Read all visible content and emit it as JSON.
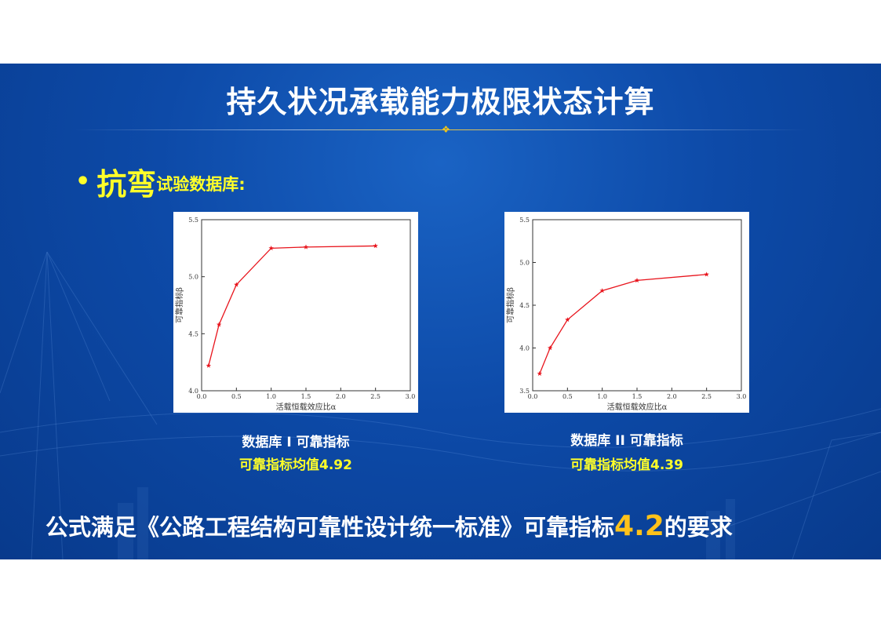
{
  "slide": {
    "title": "持久状况承载能力极限状态计算",
    "bullet_marker": "•",
    "bullet_emphasis": "抗弯",
    "bullet_rest": "试验数据库:",
    "bottom_prefix": "公式满足《公路工程结构可靠性设计统一标准》可靠指标",
    "bottom_highlight": "4.2",
    "bottom_suffix": "的要求",
    "colors": {
      "background": "#0d4aa8",
      "accent_yellow": "#ffff29",
      "highlight_orange": "#ffc21a",
      "series": "#e8141c"
    }
  },
  "charts": [
    {
      "caption": "数据库 I 可靠指标",
      "subcaption": "可靠指标均值4.92"
    },
    {
      "caption": "数据库 II 可靠指标",
      "subcaption": "可靠指标均值4.39"
    }
  ],
  "chart_data": [
    {
      "type": "line",
      "xlabel": "活载恒载效应比α",
      "ylabel": "可靠指标β",
      "xlim": [
        0,
        3.0
      ],
      "ylim": [
        4.0,
        5.5
      ],
      "xticks": [
        "0.0",
        "0.5",
        "1.0",
        "1.5",
        "2.0",
        "2.5",
        "3.0"
      ],
      "yticks": [
        "4.0",
        "4.5",
        "5.0",
        "5.5"
      ],
      "marker": "star",
      "grid": false,
      "x": [
        0.1,
        0.25,
        0.5,
        1.0,
        1.5,
        2.5
      ],
      "y": [
        4.22,
        4.58,
        4.93,
        5.25,
        5.26,
        5.27
      ]
    },
    {
      "type": "line",
      "xlabel": "活载恒载效应比α",
      "ylabel": "可靠指标β",
      "xlim": [
        0,
        3.0
      ],
      "ylim": [
        3.5,
        5.5
      ],
      "xticks": [
        "0.0",
        "0.5",
        "1.0",
        "1.5",
        "2.0",
        "2.5",
        "3.0"
      ],
      "yticks": [
        "3.5",
        "4.0",
        "4.5",
        "5.0",
        "5.5"
      ],
      "marker": "star",
      "grid": false,
      "x": [
        0.1,
        0.25,
        0.5,
        1.0,
        1.5,
        2.5
      ],
      "y": [
        3.7,
        4.0,
        4.33,
        4.67,
        4.79,
        4.86
      ]
    }
  ]
}
